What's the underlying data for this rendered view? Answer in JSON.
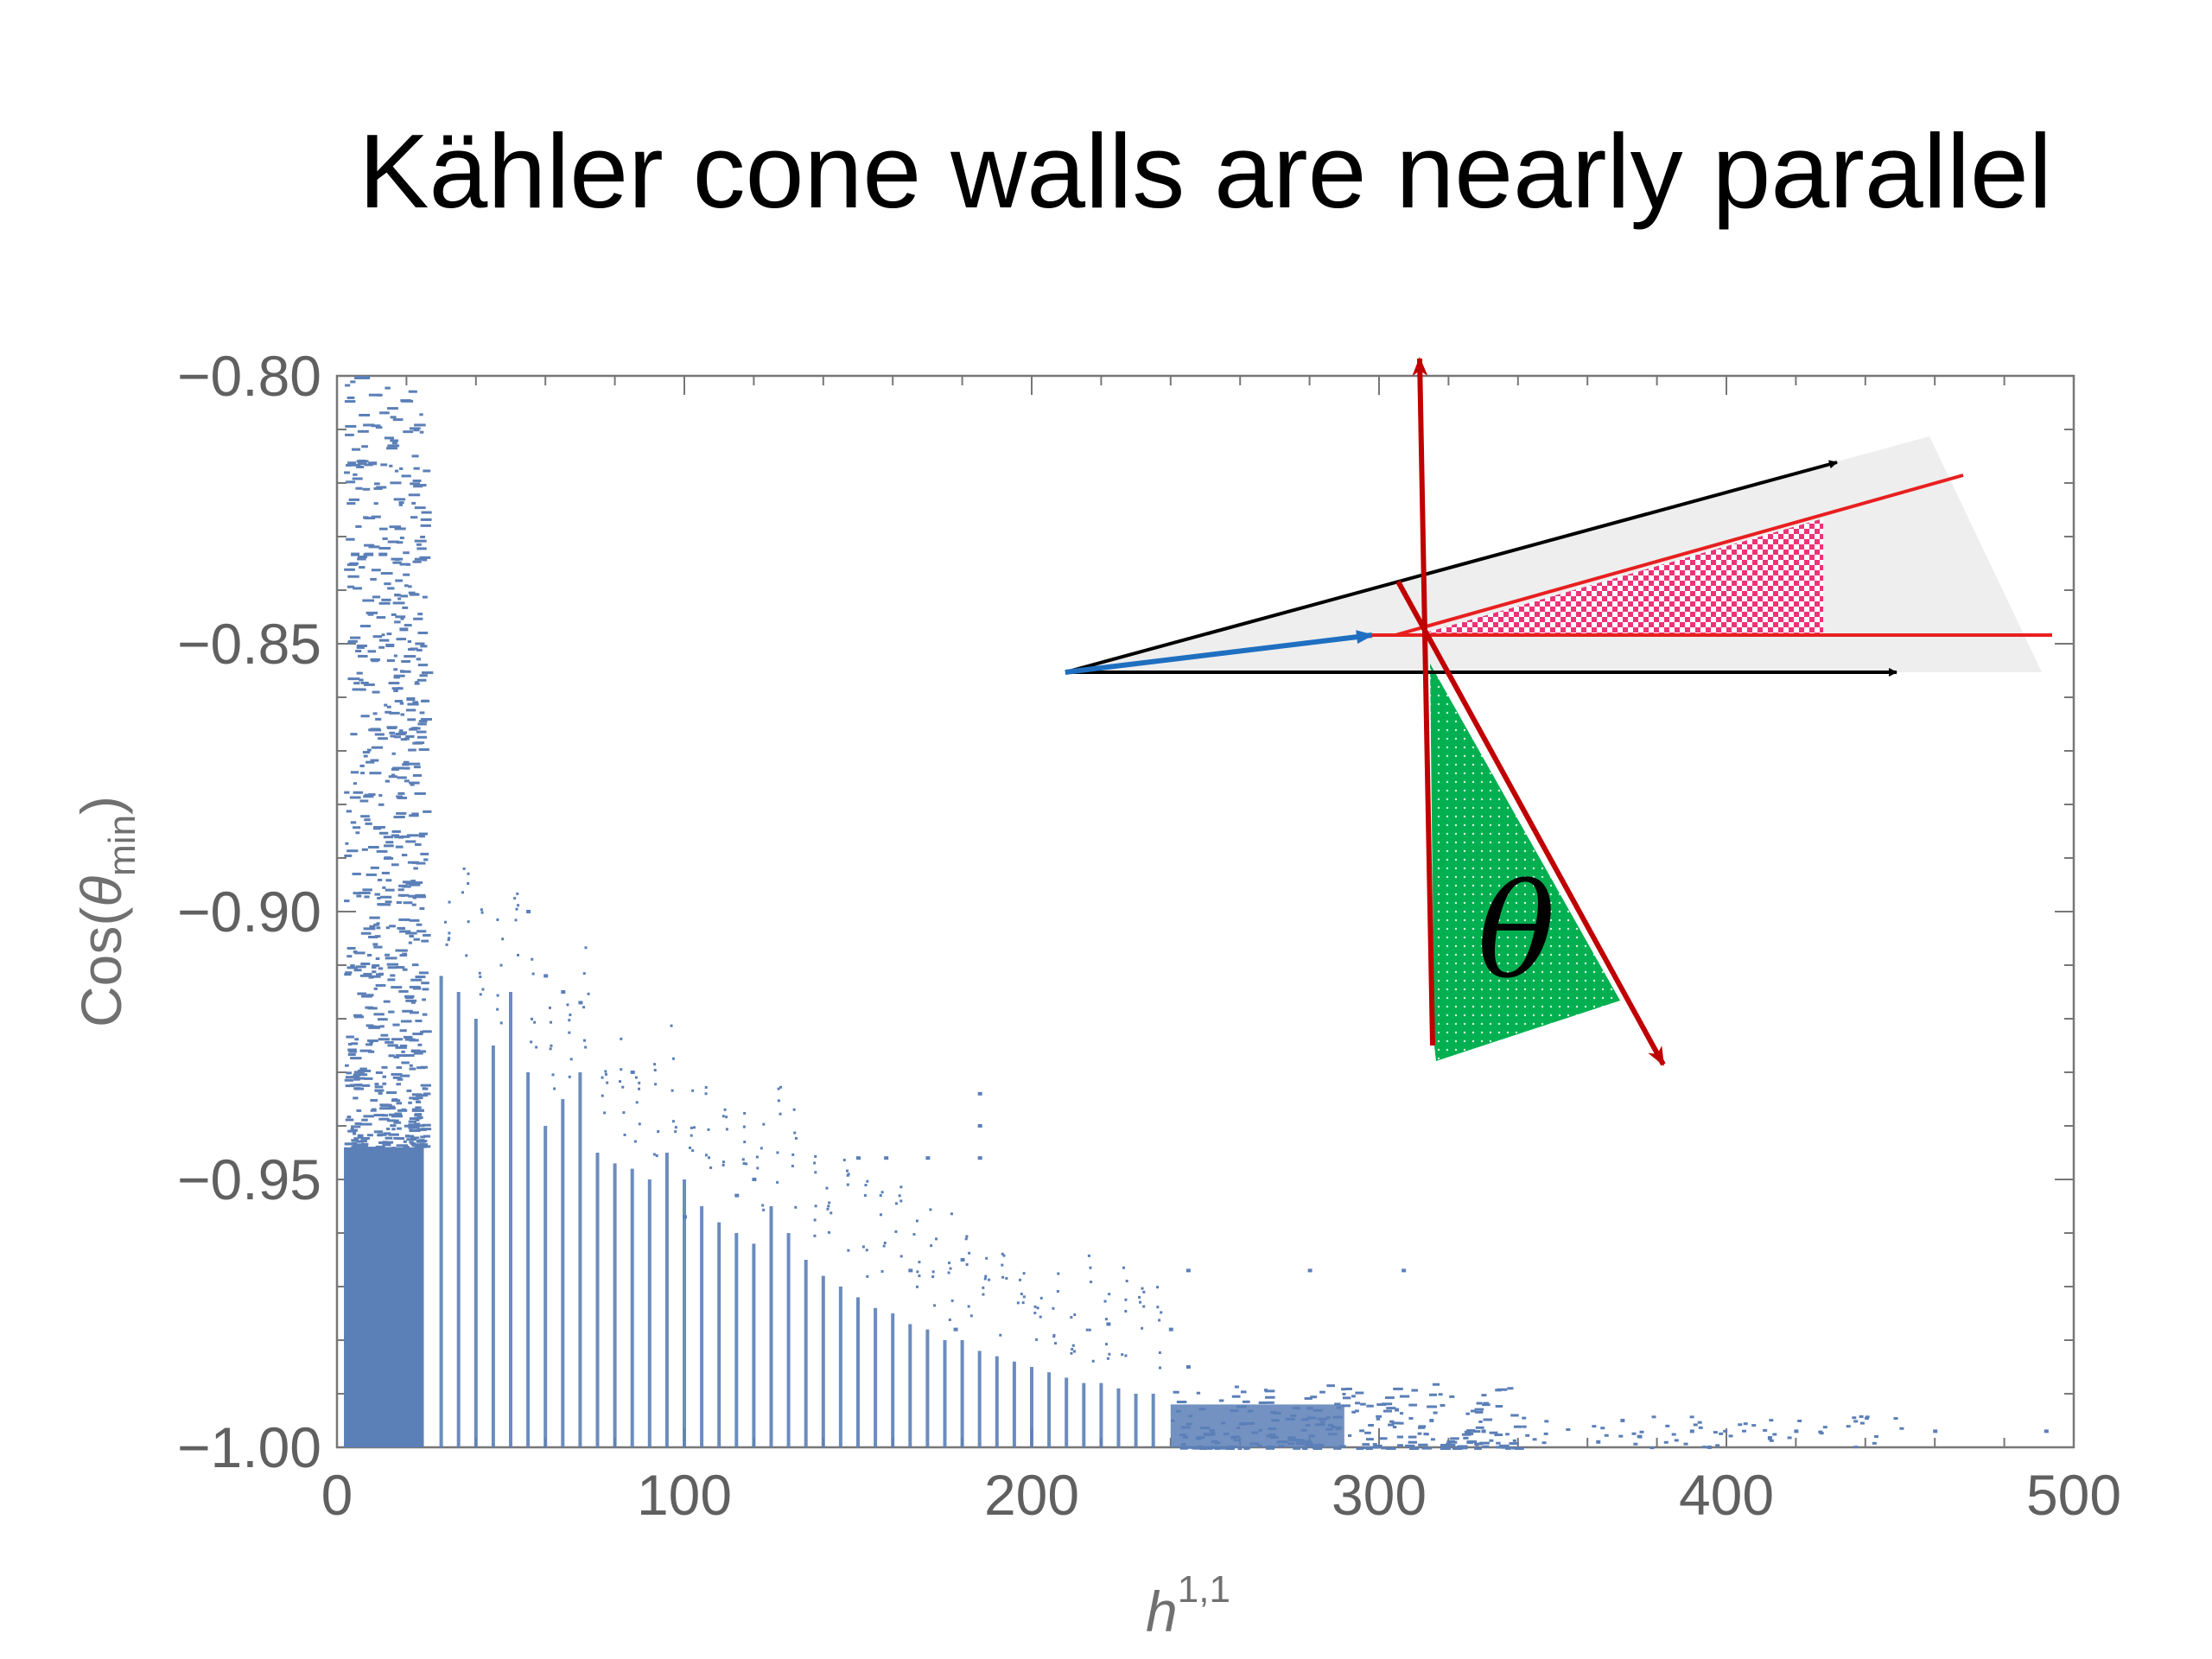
{
  "title": "Kähler cone walls are nearly parallel",
  "chart_data": {
    "type": "scatter",
    "title": "Kähler cone walls are nearly parallel",
    "xlabel": {
      "base": "h",
      "sup": "1,1"
    },
    "ylabel": {
      "prefix": "Cos(",
      "symbol": "θ",
      "sub": "min",
      "suffix": ")"
    },
    "xlim": [
      0,
      500
    ],
    "ylim": [
      -1.0,
      -0.8
    ],
    "x_ticks": [
      0,
      100,
      200,
      300,
      400,
      500
    ],
    "x_tick_labels": [
      "0",
      "100",
      "200",
      "300",
      "400",
      "500"
    ],
    "y_ticks": [
      -1.0,
      -0.95,
      -0.9,
      -0.85,
      -0.8
    ],
    "y_tick_labels": [
      "−1.00",
      "−0.95",
      "−0.90",
      "−0.85",
      "−0.80"
    ],
    "point_color": "#5b7fb7",
    "dense_bands": [
      {
        "x": [
          2,
          25
        ],
        "y": [
          -1.0,
          -0.8
        ]
      },
      {
        "x": [
          240,
          290
        ],
        "y": [
          -1.0,
          -0.99
        ]
      }
    ],
    "columns": [
      {
        "x": 30,
        "ymax": -0.912
      },
      {
        "x": 35,
        "ymax": -0.915
      },
      {
        "x": 40,
        "ymax": -0.92
      },
      {
        "x": 45,
        "ymax": -0.925
      },
      {
        "x": 50,
        "ymax": -0.915
      },
      {
        "x": 55,
        "ymax": -0.93
      },
      {
        "x": 60,
        "ymax": -0.94
      },
      {
        "x": 65,
        "ymax": -0.935
      },
      {
        "x": 70,
        "ymax": -0.93
      },
      {
        "x": 75,
        "ymax": -0.945
      },
      {
        "x": 80,
        "ymax": -0.947
      },
      {
        "x": 85,
        "ymax": -0.948
      },
      {
        "x": 90,
        "ymax": -0.95
      },
      {
        "x": 95,
        "ymax": -0.945
      },
      {
        "x": 100,
        "ymax": -0.95
      },
      {
        "x": 105,
        "ymax": -0.955
      },
      {
        "x": 110,
        "ymax": -0.958
      },
      {
        "x": 115,
        "ymax": -0.96
      },
      {
        "x": 120,
        "ymax": -0.962
      },
      {
        "x": 125,
        "ymax": -0.955
      },
      {
        "x": 130,
        "ymax": -0.96
      },
      {
        "x": 135,
        "ymax": -0.965
      },
      {
        "x": 140,
        "ymax": -0.968
      },
      {
        "x": 145,
        "ymax": -0.97
      },
      {
        "x": 150,
        "ymax": -0.972
      },
      {
        "x": 155,
        "ymax": -0.974
      },
      {
        "x": 160,
        "ymax": -0.975
      },
      {
        "x": 165,
        "ymax": -0.977
      },
      {
        "x": 170,
        "ymax": -0.978
      },
      {
        "x": 175,
        "ymax": -0.98
      },
      {
        "x": 180,
        "ymax": -0.98
      },
      {
        "x": 185,
        "ymax": -0.982
      },
      {
        "x": 190,
        "ymax": -0.983
      },
      {
        "x": 195,
        "ymax": -0.984
      },
      {
        "x": 200,
        "ymax": -0.985
      },
      {
        "x": 205,
        "ymax": -0.986
      },
      {
        "x": 210,
        "ymax": -0.987
      },
      {
        "x": 215,
        "ymax": -0.988
      },
      {
        "x": 220,
        "ymax": -0.988
      },
      {
        "x": 225,
        "ymax": -0.989
      },
      {
        "x": 230,
        "ymax": -0.99
      },
      {
        "x": 235,
        "ymax": -0.99
      }
    ],
    "outliers": [
      {
        "x": 55,
        "y": -0.9
      },
      {
        "x": 60,
        "y": -0.912
      },
      {
        "x": 65,
        "y": -0.915
      },
      {
        "x": 70,
        "y": -0.917
      },
      {
        "x": 85,
        "y": -0.93
      },
      {
        "x": 150,
        "y": -0.946
      },
      {
        "x": 158,
        "y": -0.946
      },
      {
        "x": 170,
        "y": -0.946
      },
      {
        "x": 185,
        "y": -0.934
      },
      {
        "x": 185,
        "y": -0.94
      },
      {
        "x": 185,
        "y": -0.946
      },
      {
        "x": 120,
        "y": -0.95
      },
      {
        "x": 115,
        "y": -0.953
      },
      {
        "x": 180,
        "y": -0.965
      },
      {
        "x": 165,
        "y": -0.967
      },
      {
        "x": 245,
        "y": -0.967
      },
      {
        "x": 280,
        "y": -0.967
      },
      {
        "x": 307,
        "y": -0.967
      },
      {
        "x": 240,
        "y": -0.978
      },
      {
        "x": 245,
        "y": -0.985
      },
      {
        "x": 305,
        "y": -0.993
      },
      {
        "x": 315,
        "y": -0.995
      },
      {
        "x": 330,
        "y": -0.997
      },
      {
        "x": 370,
        "y": -0.995
      },
      {
        "x": 390,
        "y": -0.997
      },
      {
        "x": 420,
        "y": -0.997
      },
      {
        "x": 460,
        "y": -0.997
      },
      {
        "x": 492,
        "y": -0.997
      },
      {
        "x": 395,
        "y": -1.0
      },
      {
        "x": 375,
        "y": -0.998
      },
      {
        "x": 363,
        "y": -0.999
      },
      {
        "x": 100,
        "y": -0.957
      },
      {
        "x": 178,
        "y": -0.978
      },
      {
        "x": 222,
        "y": -0.977
      }
    ],
    "inset": {
      "type": "diagram",
      "label": "θ",
      "colors": {
        "cone_fill": "#eeeeee",
        "black_arrow": "#000000",
        "blue_arrow": "#1f6fc0",
        "red_line": "#e81f1f",
        "dark_red_line": "#c00000",
        "pink_fill": "#ee3377",
        "green_fill": "#00b050"
      }
    }
  }
}
